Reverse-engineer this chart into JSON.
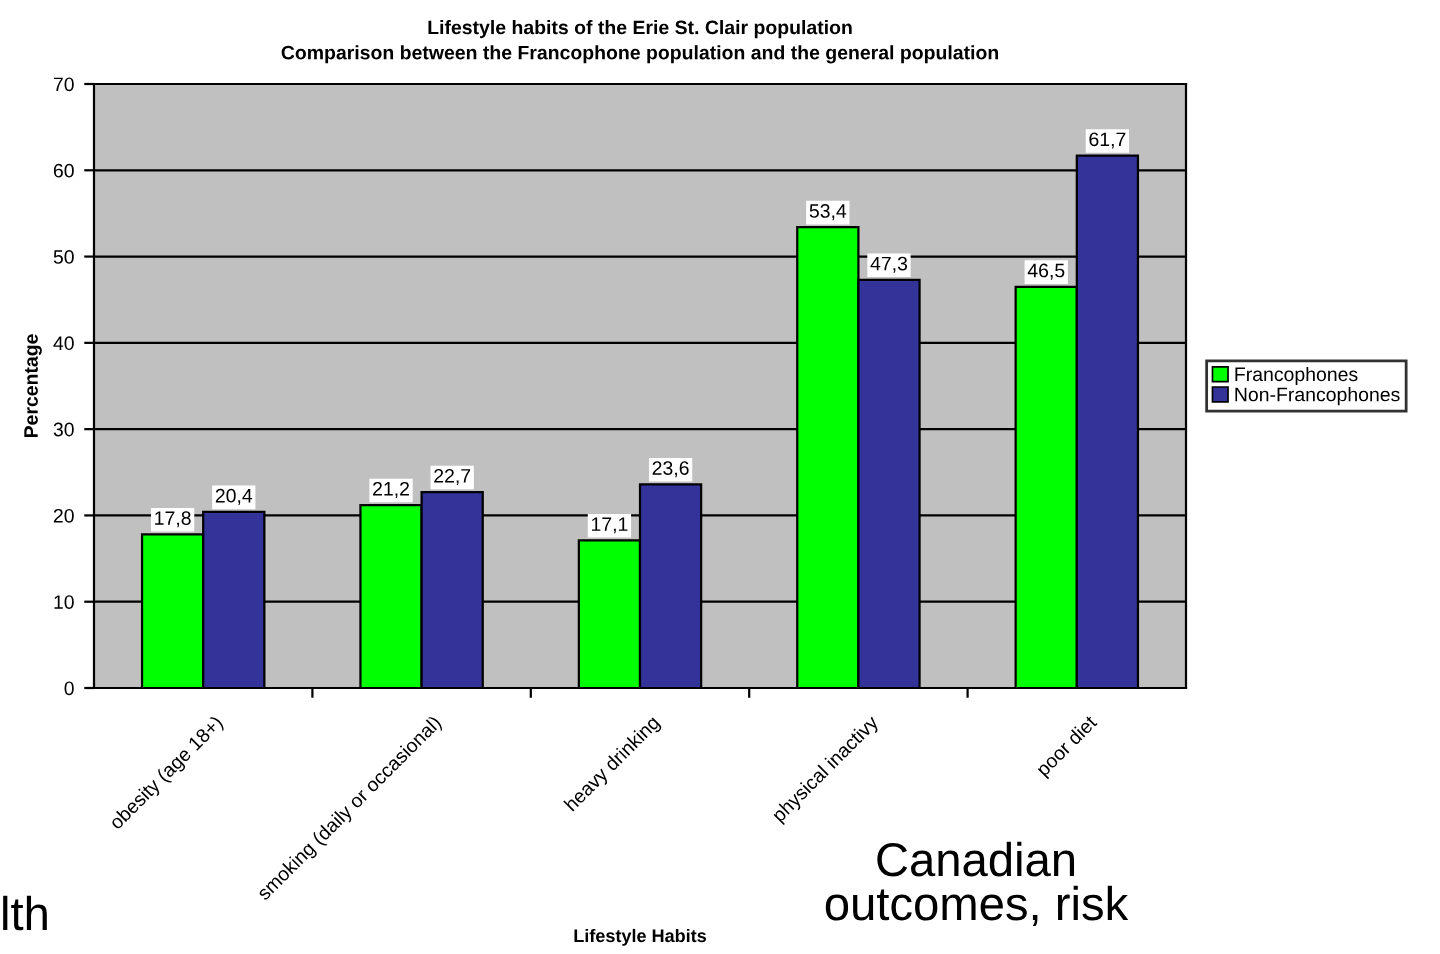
{
  "chart_data": {
    "type": "bar",
    "title": "Lifestyle habits of the Erie St. Clair population\nComparison between the Francophone population and the general population",
    "xlabel": "Lifestyle Habits",
    "ylabel": "Percentage",
    "categories": [
      "obesity (age 18+)",
      "smoking (daily or occasional)",
      "heavy drinking",
      "physical inactivy",
      "poor diet"
    ],
    "series": [
      {
        "name": "Francophones",
        "color": "#00ff00",
        "values": [
          17.8,
          21.2,
          17.1,
          53.4,
          46.5
        ],
        "value_labels": [
          "17,8",
          "21,2",
          "17,1",
          "53,4",
          "46,5"
        ]
      },
      {
        "name": "Non-Francophones",
        "color": "#333399",
        "values": [
          20.4,
          22.7,
          23.6,
          47.3,
          61.7
        ],
        "value_labels": [
          "20,4",
          "22,7",
          "23,6",
          "47,3",
          "61,7"
        ]
      }
    ],
    "ylim": [
      0,
      70
    ],
    "yticks": [
      0,
      10,
      20,
      30,
      40,
      50,
      60,
      70
    ],
    "grid": "y",
    "legend": "right",
    "annotations": [
      "lth",
      "Canadian\noutcomes, risk"
    ]
  }
}
